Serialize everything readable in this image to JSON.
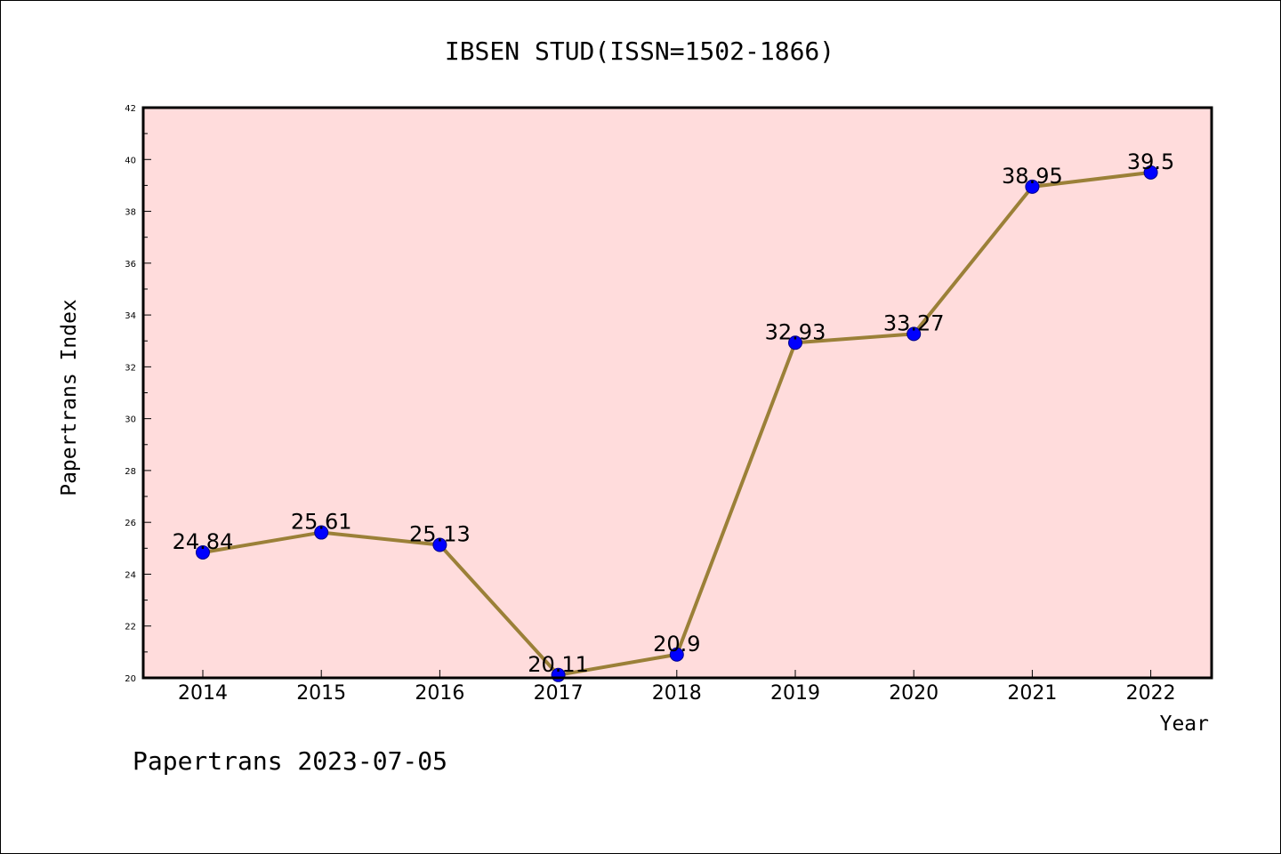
{
  "chart_data": {
    "type": "line",
    "title": "IBSEN STUD(ISSN=1502-1866)",
    "xlabel": "Year",
    "ylabel": "Papertrans Index",
    "x": [
      "2014",
      "2015",
      "2016",
      "2017",
      "2018",
      "2019",
      "2020",
      "2021",
      "2022"
    ],
    "series": [
      {
        "values": [
          24.84,
          25.61,
          25.13,
          20.11,
          20.9,
          32.93,
          33.27,
          38.95,
          39.5
        ],
        "data_labels": [
          "24.84",
          "25.61",
          "25.13",
          "20.11",
          "20.9",
          "32.93",
          "33.27",
          "38.95",
          "39.5"
        ]
      }
    ],
    "ylim": [
      20,
      42
    ],
    "yticks": [
      20,
      22,
      24,
      26,
      28,
      30,
      32,
      34,
      36,
      38,
      40,
      42
    ],
    "grid": false,
    "colors": {
      "plot_background": "#ffdcdc",
      "line": "#9b8038",
      "marker": "#0000ff",
      "marker_edge": "#00008b"
    }
  },
  "footer": "Papertrans 2023-07-05"
}
